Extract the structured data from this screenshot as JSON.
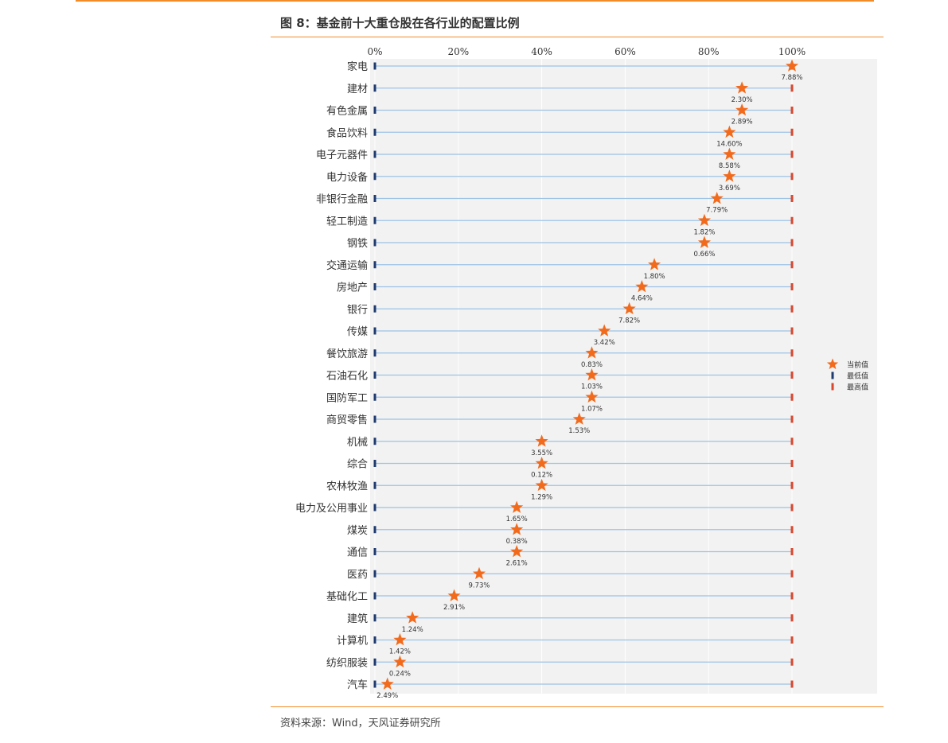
{
  "title": "图 8：基金前十大重仓股在各行业的配置比例",
  "source": "资料来源：Wind，天风证券研究所",
  "colors": {
    "accent": "#F28C28",
    "star": "#F26B1D",
    "min_marker": "#1F3A6E",
    "max_marker": "#D8472E",
    "guide_line": "#9DC3E6",
    "plot_bg": "#F2F2F2"
  },
  "chart_data": {
    "type": "scatter",
    "title": "",
    "xlabel": "",
    "ylabel": "",
    "xlim": [
      0,
      100
    ],
    "x_ticks": [
      "0%",
      "20%",
      "40%",
      "60%",
      "80%",
      "100%"
    ],
    "grid": true,
    "legend_position": "right",
    "legend": [
      {
        "name": "当前值",
        "marker": "star-icon"
      },
      {
        "name": "最低值",
        "marker": "bar-icon"
      },
      {
        "name": "最高值",
        "marker": "bar-icon"
      }
    ],
    "categories": [
      "家电",
      "建材",
      "有色金属",
      "食品饮料",
      "电子元器件",
      "电力设备",
      "非银行金融",
      "轻工制造",
      "钢铁",
      "交通运输",
      "房地产",
      "银行",
      "传媒",
      "餐饮旅游",
      "石油石化",
      "国防军工",
      "商贸零售",
      "机械",
      "综合",
      "农林牧渔",
      "电力及公用事业",
      "煤炭",
      "通信",
      "医药",
      "基础化工",
      "建筑",
      "计算机",
      "纺织服装",
      "汽车"
    ],
    "current_percentile": [
      100,
      88,
      88,
      85,
      85,
      85,
      82,
      79,
      79,
      67,
      64,
      61,
      55,
      52,
      52,
      52,
      49,
      40,
      40,
      40,
      34,
      34,
      34,
      25,
      19,
      9,
      6,
      6,
      3
    ],
    "labels": [
      "7.88%",
      "2.30%",
      "2.89%",
      "14.60%",
      "8.58%",
      "3.69%",
      "7.79%",
      "1.82%",
      "0.66%",
      "1.80%",
      "4.64%",
      "7.82%",
      "3.42%",
      "0.83%",
      "1.03%",
      "1.07%",
      "1.53%",
      "3.55%",
      "0.12%",
      "1.29%",
      "1.65%",
      "0.38%",
      "2.61%",
      "9.73%",
      "2.91%",
      "1.24%",
      "1.42%",
      "0.24%",
      "2.49%"
    ],
    "min_value": 0,
    "max_value": 100
  }
}
